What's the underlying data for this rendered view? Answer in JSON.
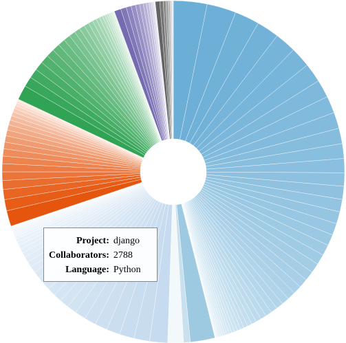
{
  "chart_data": {
    "type": "pie",
    "series": [
      {
        "color": "#6baed6",
        "values": [
          1500,
          1300,
          1100,
          1000,
          950,
          900,
          850,
          800,
          760,
          720,
          690,
          660,
          630,
          600,
          580,
          560,
          540,
          520,
          500,
          480,
          460,
          440,
          420,
          400,
          380,
          360,
          340,
          320,
          300,
          280,
          260,
          240,
          220,
          200,
          180,
          160,
          150,
          140,
          130,
          120,
          110,
          100,
          90,
          80,
          70,
          60,
          50,
          40,
          30,
          20
        ]
      },
      {
        "color": "#9ecae1",
        "values": [
          1100,
          300,
          700
        ]
      },
      {
        "color": "#c6dbef",
        "values": [
          800,
          700,
          650,
          600,
          560,
          520,
          480,
          440,
          400,
          380,
          360,
          340,
          320,
          300,
          280,
          260,
          240,
          220,
          200,
          180,
          160,
          140,
          120,
          100,
          90,
          80,
          70,
          60,
          50,
          40
        ]
      },
      {
        "color": "#e6550d",
        "values": [
          700,
          500,
          450,
          400,
          380,
          360,
          340,
          320,
          300,
          280,
          260,
          240,
          220,
          200,
          180,
          160,
          140,
          120,
          100,
          80
        ]
      },
      {
        "color": "#31a354",
        "values": [
          650,
          450,
          420,
          400,
          380,
          360,
          340,
          320,
          300,
          280,
          260,
          240,
          220,
          200,
          180,
          160,
          140,
          120,
          100,
          90,
          80,
          70,
          60,
          50
        ]
      },
      {
        "color": "#756bb1",
        "values": [
          300,
          250,
          220,
          200,
          180,
          160,
          140,
          120,
          100,
          80,
          60,
          40
        ]
      },
      {
        "color": "#636363",
        "values": [
          200,
          150,
          120,
          100,
          80,
          60,
          50,
          40
        ]
      }
    ],
    "tooltip": {
      "rows": [
        {
          "label": "Project:",
          "value": "django"
        },
        {
          "label": "Collaborators:",
          "value": 2788
        },
        {
          "label": "Language:",
          "value": "Python"
        }
      ]
    }
  }
}
